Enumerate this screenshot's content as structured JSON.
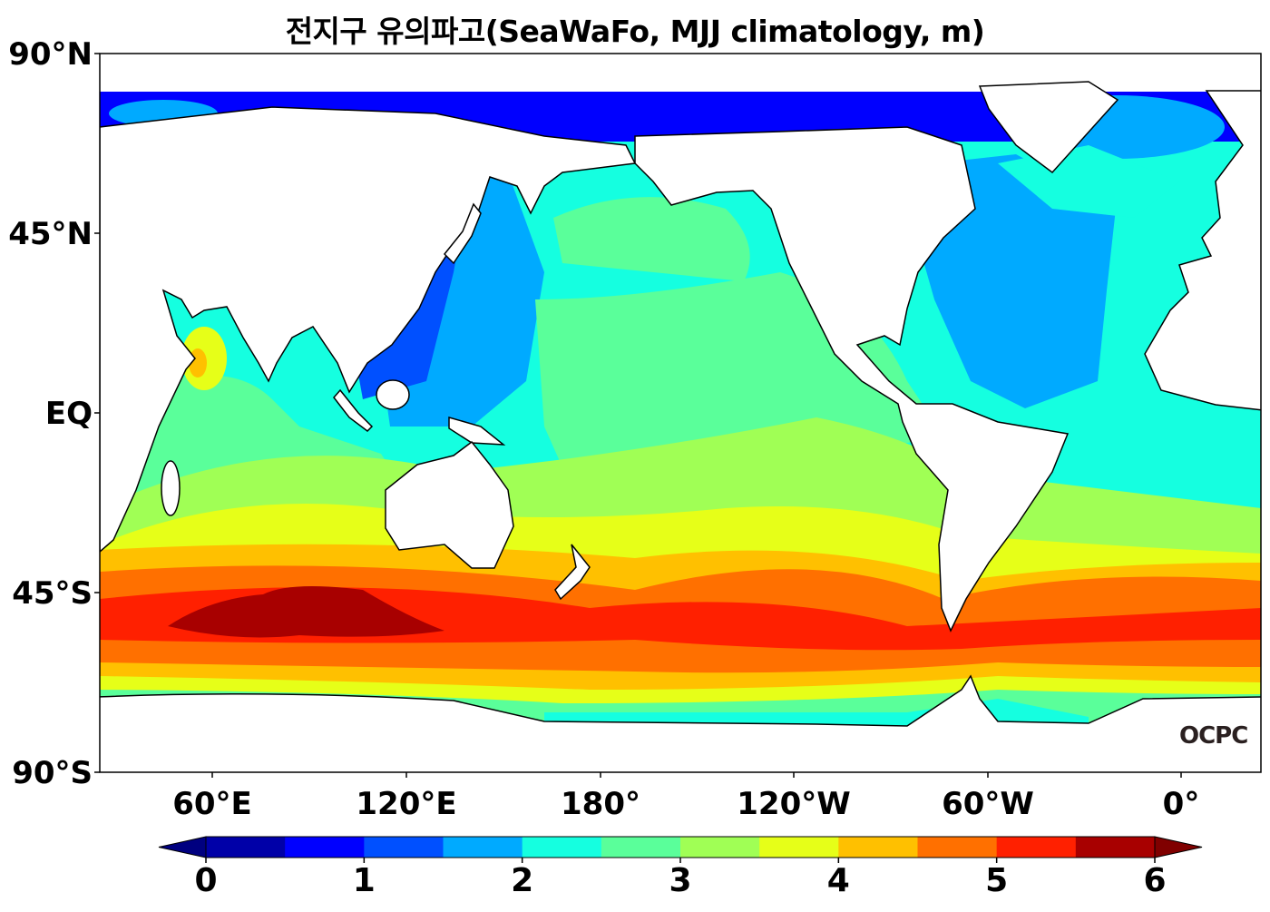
{
  "title": "전지구 유의파고(SeaWaFo, MJJ climatology, m)",
  "lat_labels": [
    "90°N",
    "45°N",
    "EQ",
    "45°S",
    "90°S"
  ],
  "lon_labels": [
    "60°E",
    "120°E",
    "180°",
    "120°W",
    "60°W",
    "0°"
  ],
  "colorbar": {
    "min": 0,
    "max": 6,
    "step": 0.5,
    "tick_labels": [
      "0",
      "1",
      "2",
      "3",
      "4",
      "5",
      "6"
    ],
    "colors": [
      "#0000a8",
      "#0000ff",
      "#0050ff",
      "#00aaff",
      "#15ffe0",
      "#5aff9a",
      "#a0ff55",
      "#e6ff18",
      "#ffc000",
      "#ff7000",
      "#ff2000",
      "#a80000"
    ],
    "under_color": "#000080",
    "over_color": "#800000"
  },
  "logo": "OCPC"
}
